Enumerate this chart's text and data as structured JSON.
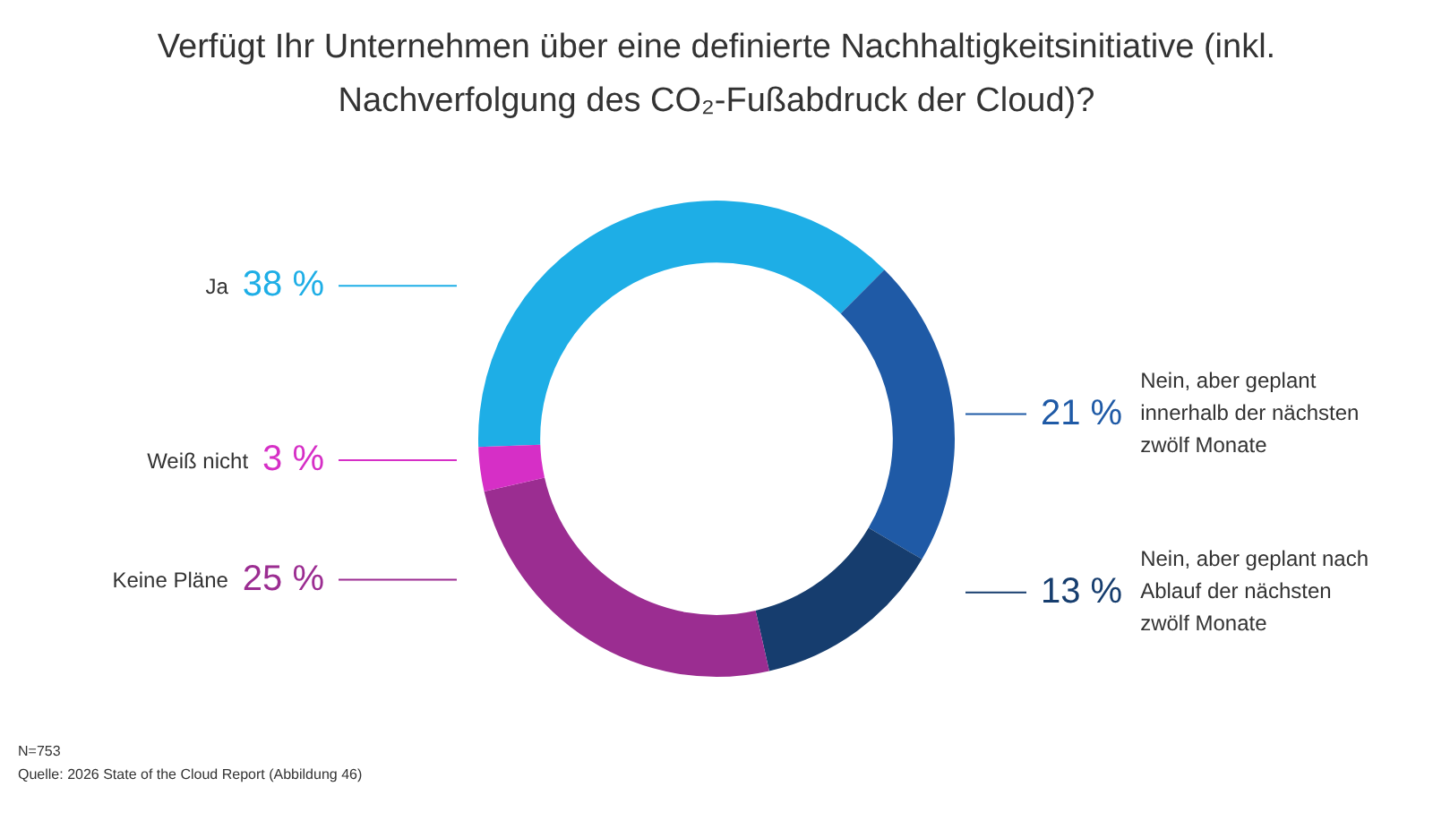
{
  "chart_data": {
    "type": "donut",
    "title": "Verfügt Ihr Unternehmen über eine definierte Nachhaltigkeitsinitiative (inkl. Nachverfolgung des CO₂-Fußabdruck der Cloud)?",
    "categories": [
      "Ja",
      "Nein, aber geplant innerhalb der nächsten zwölf Monate",
      "Nein, aber geplant nach Ablauf der nächsten zwölf Monate",
      "Keine Pläne",
      "Weiß nicht"
    ],
    "values": [
      38,
      21,
      13,
      25,
      3
    ],
    "colors": [
      "#1eaee6",
      "#1f5aa6",
      "#163d6e",
      "#9b2d91",
      "#d62fc6"
    ],
    "value_labels": [
      "38 %",
      "21 %",
      "13 %",
      "25 %",
      "3 %"
    ],
    "annotations": [
      "N=753",
      "Quelle: 2026 State of the Cloud Report (Abbildung 46)"
    ]
  }
}
